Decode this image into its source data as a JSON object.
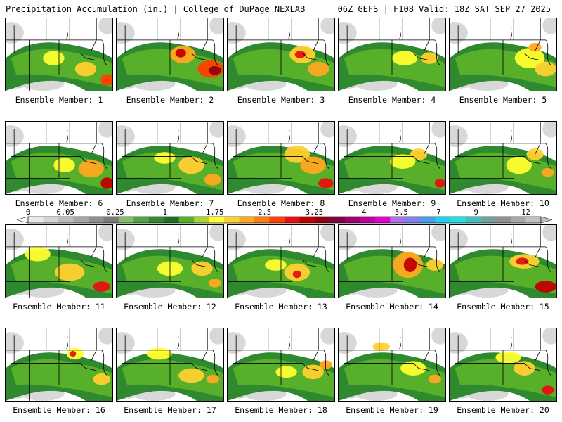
{
  "header": {
    "title": "Precipitation Accumulation (in.) | College of DuPage NEXLAB",
    "run_info": "06Z GEFS | F108 Valid: 18Z SAT SEP 27 2025"
  },
  "colorbar": {
    "ticks": [
      "0",
      "0.05",
      "0.25",
      "1",
      "1.75",
      "2.5",
      "3.25",
      "4",
      "5.5",
      "7",
      "9",
      "12"
    ],
    "colors": [
      "#e8e8e8",
      "#d4d4d4",
      "#bdbdbd",
      "#a6a6a6",
      "#8f8f8f",
      "#7a7a7a",
      "#7fbf6a",
      "#4fa640",
      "#2f8a2f",
      "#1f7024",
      "#58b02a",
      "#a8d830",
      "#ffff30",
      "#ffd030",
      "#ffa820",
      "#ff7a10",
      "#ff4000",
      "#e81010",
      "#c00000",
      "#900010",
      "#800040",
      "#a00070",
      "#c000a0",
      "#e000d0",
      "#b070e8",
      "#8080f0",
      "#40a0f0",
      "#20d0f0",
      "#20e0e0",
      "#40c0c0",
      "#70a0a0",
      "#909090",
      "#a8a8a8",
      "#c0c0c0"
    ]
  },
  "members": [
    {
      "label": "Ensemble Member: 1",
      "blobs": [
        [
          0.45,
          0.55,
          0.1,
          0.1,
          "#ffff30"
        ],
        [
          0.75,
          0.7,
          0.1,
          0.1,
          "#ffd030"
        ],
        [
          0.95,
          0.85,
          0.06,
          0.08,
          "#ff4000"
        ]
      ]
    },
    {
      "label": "Ensemble Member: 2",
      "blobs": [
        [
          0.62,
          0.5,
          0.12,
          0.12,
          "#ffa820"
        ],
        [
          0.6,
          0.48,
          0.05,
          0.06,
          "#c00000"
        ],
        [
          0.88,
          0.7,
          0.12,
          0.12,
          "#ff4000"
        ],
        [
          0.92,
          0.72,
          0.06,
          0.06,
          "#900010"
        ]
      ]
    },
    {
      "label": "Ensemble Member: 3",
      "blobs": [
        [
          0.7,
          0.5,
          0.12,
          0.12,
          "#ffd030"
        ],
        [
          0.68,
          0.5,
          0.05,
          0.05,
          "#e81010"
        ],
        [
          0.85,
          0.7,
          0.1,
          0.1,
          "#ffa820"
        ]
      ]
    },
    {
      "label": "Ensemble Member: 4",
      "blobs": [
        [
          0.62,
          0.55,
          0.12,
          0.1,
          "#ffff30"
        ],
        [
          0.85,
          0.55,
          0.08,
          0.08,
          "#ffd030"
        ]
      ]
    },
    {
      "label": "Ensemble Member: 5",
      "blobs": [
        [
          0.75,
          0.55,
          0.14,
          0.14,
          "#ffff30"
        ],
        [
          0.8,
          0.4,
          0.06,
          0.06,
          "#ffa820"
        ],
        [
          0.9,
          0.7,
          0.1,
          0.1,
          "#ffd030"
        ]
      ]
    },
    {
      "label": "Ensemble Member: 6",
      "blobs": [
        [
          0.55,
          0.6,
          0.1,
          0.1,
          "#ffff30"
        ],
        [
          0.8,
          0.65,
          0.12,
          0.12,
          "#ffa820"
        ],
        [
          0.95,
          0.85,
          0.06,
          0.08,
          "#c00000"
        ]
      ]
    },
    {
      "label": "Ensemble Member: 7",
      "blobs": [
        [
          0.45,
          0.5,
          0.1,
          0.08,
          "#ffff30"
        ],
        [
          0.7,
          0.6,
          0.12,
          0.12,
          "#ffd030"
        ],
        [
          0.9,
          0.8,
          0.08,
          0.08,
          "#ffa820"
        ]
      ]
    },
    {
      "label": "Ensemble Member: 8",
      "blobs": [
        [
          0.65,
          0.45,
          0.12,
          0.12,
          "#ffd030"
        ],
        [
          0.8,
          0.6,
          0.12,
          0.12,
          "#ffa820"
        ],
        [
          0.92,
          0.85,
          0.07,
          0.07,
          "#e81010"
        ]
      ]
    },
    {
      "label": "Ensemble Member: 9",
      "blobs": [
        [
          0.6,
          0.55,
          0.12,
          0.1,
          "#ffff30"
        ],
        [
          0.75,
          0.45,
          0.08,
          0.08,
          "#ffd030"
        ],
        [
          0.95,
          0.85,
          0.05,
          0.06,
          "#e81010"
        ]
      ]
    },
    {
      "label": "Ensemble Member: 10",
      "blobs": [
        [
          0.65,
          0.6,
          0.12,
          0.12,
          "#ffff30"
        ],
        [
          0.8,
          0.45,
          0.08,
          0.08,
          "#ffd030"
        ],
        [
          0.92,
          0.7,
          0.06,
          0.06,
          "#ffa820"
        ]
      ]
    },
    {
      "label": "Ensemble Member: 11",
      "blobs": [
        [
          0.3,
          0.4,
          0.12,
          0.1,
          "#ffff30"
        ],
        [
          0.6,
          0.65,
          0.14,
          0.12,
          "#ffd030"
        ],
        [
          0.9,
          0.85,
          0.08,
          0.07,
          "#e81010"
        ]
      ]
    },
    {
      "label": "Ensemble Member: 12",
      "blobs": [
        [
          0.5,
          0.6,
          0.12,
          0.1,
          "#ffff30"
        ],
        [
          0.8,
          0.6,
          0.1,
          0.1,
          "#ffd030"
        ],
        [
          0.92,
          0.8,
          0.06,
          0.06,
          "#ffa820"
        ]
      ]
    },
    {
      "label": "Ensemble Member: 13",
      "blobs": [
        [
          0.45,
          0.55,
          0.1,
          0.08,
          "#ffff30"
        ],
        [
          0.65,
          0.65,
          0.12,
          0.12,
          "#ffd030"
        ],
        [
          0.65,
          0.68,
          0.04,
          0.05,
          "#e81010"
        ]
      ]
    },
    {
      "label": "Ensemble Member: 14",
      "blobs": [
        [
          0.65,
          0.55,
          0.14,
          0.18,
          "#ffa820"
        ],
        [
          0.67,
          0.55,
          0.06,
          0.1,
          "#c00000"
        ],
        [
          0.9,
          0.55,
          0.08,
          0.08,
          "#ffd030"
        ]
      ]
    },
    {
      "label": "Ensemble Member: 15",
      "blobs": [
        [
          0.7,
          0.5,
          0.14,
          0.1,
          "#ffd030"
        ],
        [
          0.68,
          0.5,
          0.06,
          0.05,
          "#e81010"
        ],
        [
          0.9,
          0.85,
          0.1,
          0.08,
          "#c00000"
        ]
      ]
    },
    {
      "label": "Ensemble Member: 16",
      "blobs": [
        [
          0.65,
          0.35,
          0.08,
          0.08,
          "#ffff30"
        ],
        [
          0.63,
          0.35,
          0.03,
          0.04,
          "#e81010"
        ],
        [
          0.9,
          0.7,
          0.08,
          0.08,
          "#ffd030"
        ]
      ]
    },
    {
      "label": "Ensemble Member: 17",
      "blobs": [
        [
          0.4,
          0.35,
          0.12,
          0.08,
          "#ffff30"
        ],
        [
          0.7,
          0.65,
          0.12,
          0.1,
          "#ffd030"
        ],
        [
          0.9,
          0.7,
          0.06,
          0.06,
          "#ffa820"
        ]
      ]
    },
    {
      "label": "Ensemble Member: 18",
      "blobs": [
        [
          0.55,
          0.6,
          0.1,
          0.08,
          "#ffff30"
        ],
        [
          0.8,
          0.6,
          0.1,
          0.1,
          "#ffd030"
        ],
        [
          0.92,
          0.5,
          0.06,
          0.06,
          "#ffa820"
        ]
      ]
    },
    {
      "label": "Ensemble Member: 19",
      "blobs": [
        [
          0.4,
          0.25,
          0.08,
          0.06,
          "#ffd030"
        ],
        [
          0.7,
          0.55,
          0.12,
          0.1,
          "#ffff30"
        ],
        [
          0.9,
          0.7,
          0.06,
          0.06,
          "#ffa820"
        ]
      ]
    },
    {
      "label": "Ensemble Member: 20",
      "blobs": [
        [
          0.55,
          0.4,
          0.12,
          0.08,
          "#ffff30"
        ],
        [
          0.7,
          0.55,
          0.1,
          0.1,
          "#ffd030"
        ],
        [
          0.92,
          0.85,
          0.06,
          0.06,
          "#e81010"
        ]
      ]
    }
  ]
}
